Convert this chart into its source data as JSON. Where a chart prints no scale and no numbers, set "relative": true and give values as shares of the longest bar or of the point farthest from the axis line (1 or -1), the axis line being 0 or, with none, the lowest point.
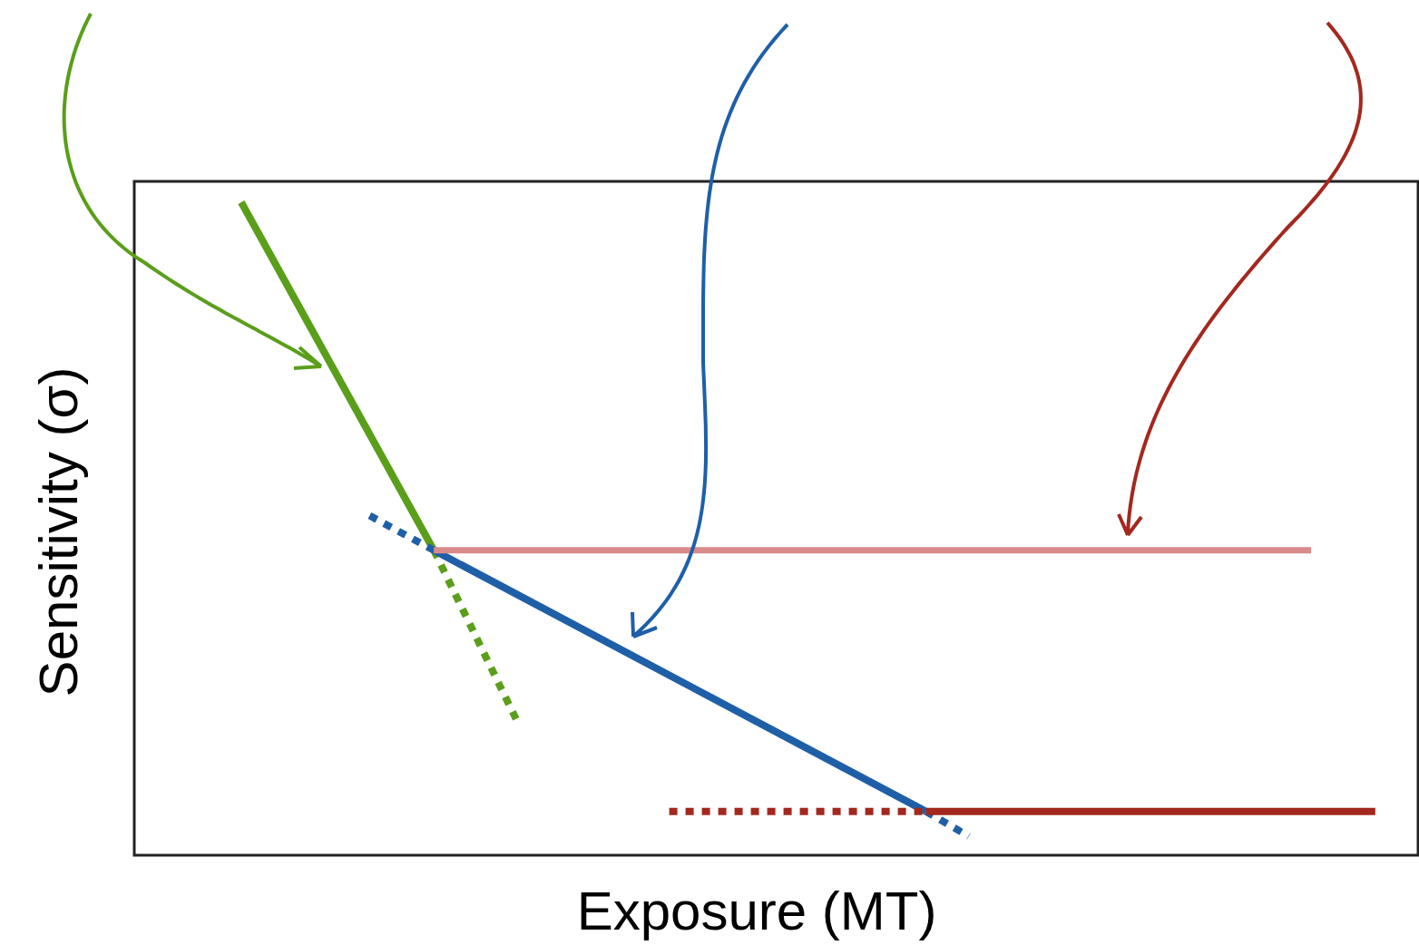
{
  "chart_data": {
    "type": "line",
    "xlabel": "Exposure (MT)",
    "ylabel": "Sensitivity (σ)",
    "relative": true,
    "categories": [
      null,
      null,
      null,
      null,
      null,
      null,
      null,
      null,
      null,
      null,
      null,
      null,
      null,
      null,
      null,
      null,
      null,
      null,
      null,
      null,
      null,
      null,
      null,
      null,
      null,
      null,
      null,
      null,
      null,
      null,
      null,
      null,
      null,
      null,
      null,
      null,
      null,
      null,
      null,
      null,
      null,
      null,
      null,
      null,
      null,
      null,
      null,
      null,
      null,
      null,
      null,
      null,
      null,
      null,
      null,
      null,
      null,
      null,
      null,
      null,
      null
    ],
    "series": [
      {
        "color": "#5a9e1a",
        "line_style": "solid",
        "values": [
          null,
          null,
          null,
          null,
          null,
          1,
          null,
          null,
          null,
          null,
          null,
          null,
          null,
          null,
          0.467,
          null,
          null,
          null,
          null,
          null,
          null,
          null,
          null,
          null,
          null,
          null,
          null,
          null,
          null,
          null,
          null,
          null,
          null,
          null,
          null,
          null,
          null,
          null,
          null,
          null,
          null,
          null,
          null,
          null,
          null,
          null,
          null,
          null,
          null,
          null,
          null,
          null,
          null,
          null,
          null,
          null,
          null,
          null,
          null,
          null,
          null
        ]
      },
      {
        "color": "#5a9e1a",
        "line_style": "dotted",
        "values": [
          null,
          null,
          null,
          null,
          null,
          null,
          null,
          null,
          null,
          null,
          null,
          null,
          null,
          null,
          0.467,
          null,
          null,
          null,
          0.198,
          null,
          null,
          null,
          null,
          null,
          null,
          null,
          null,
          null,
          null,
          null,
          null,
          null,
          null,
          null,
          null,
          null,
          null,
          null,
          null,
          null,
          null,
          null,
          null,
          null,
          null,
          null,
          null,
          null,
          null,
          null,
          null,
          null,
          null,
          null,
          null,
          null,
          null,
          null,
          null,
          null,
          null
        ]
      },
      {
        "color": "#1f5fa8",
        "line_style": "dotted",
        "values": [
          null,
          null,
          null,
          null,
          null,
          null,
          null,
          null,
          null,
          null,
          null,
          0.52,
          null,
          null,
          0.467,
          null,
          null,
          null,
          null,
          null,
          null,
          null,
          null,
          null,
          null,
          null,
          null,
          null,
          null,
          null,
          null,
          null,
          null,
          null,
          null,
          null,
          null,
          null,
          null,
          null,
          null,
          null,
          null,
          null,
          null,
          null,
          null,
          null,
          null,
          null,
          null,
          null,
          null,
          null,
          null,
          null,
          null,
          null,
          null,
          null,
          null
        ]
      },
      {
        "color": "#1f5fa8",
        "line_style": "solid",
        "values": [
          null,
          null,
          null,
          null,
          null,
          null,
          null,
          null,
          null,
          null,
          null,
          null,
          null,
          null,
          0.467,
          null,
          null,
          null,
          null,
          null,
          null,
          null,
          null,
          null,
          null,
          null,
          null,
          null,
          null,
          null,
          null,
          null,
          null,
          null,
          null,
          null,
          null,
          0.067,
          null,
          null,
          null,
          null,
          null,
          null,
          null,
          null,
          null,
          null,
          null,
          null,
          null,
          null,
          null,
          null,
          null,
          null,
          null,
          null,
          null,
          null,
          null
        ]
      },
      {
        "color": "#1f5fa8",
        "line_style": "dotted",
        "values": [
          null,
          null,
          null,
          null,
          null,
          null,
          null,
          null,
          null,
          null,
          null,
          null,
          null,
          null,
          null,
          null,
          null,
          null,
          null,
          null,
          null,
          null,
          null,
          null,
          null,
          null,
          null,
          null,
          null,
          null,
          null,
          null,
          null,
          null,
          null,
          null,
          null,
          0.067,
          null,
          0.029,
          null,
          null,
          null,
          null,
          null,
          null,
          null,
          null,
          null,
          null,
          null,
          null,
          null,
          null,
          null,
          null,
          null,
          null,
          null,
          null,
          null
        ]
      },
      {
        "color": "#d98a8a",
        "line_style": "solid",
        "values": [
          null,
          null,
          null,
          null,
          null,
          null,
          null,
          null,
          null,
          null,
          null,
          null,
          null,
          null,
          0.467,
          null,
          null,
          null,
          null,
          null,
          null,
          null,
          null,
          null,
          null,
          null,
          null,
          null,
          null,
          null,
          null,
          null,
          null,
          null,
          null,
          null,
          null,
          null,
          null,
          null,
          null,
          null,
          null,
          null,
          null,
          null,
          null,
          null,
          null,
          null,
          null,
          null,
          null,
          null,
          null,
          0.467,
          null,
          null,
          null,
          null,
          null
        ]
      },
      {
        "color": "#a3281e",
        "line_style": "dotted",
        "values": [
          null,
          null,
          null,
          null,
          null,
          null,
          null,
          null,
          null,
          null,
          null,
          null,
          null,
          null,
          null,
          null,
          null,
          null,
          null,
          null,
          null,
          null,
          null,
          null,
          null,
          0.067,
          null,
          null,
          null,
          null,
          null,
          null,
          null,
          null,
          null,
          null,
          null,
          0.067,
          null,
          null,
          null,
          null,
          null,
          null,
          null,
          null,
          null,
          null,
          null,
          null,
          null,
          null,
          null,
          null,
          null,
          null,
          null,
          null,
          null,
          null,
          null
        ]
      },
      {
        "color": "#a3281e",
        "line_style": "solid",
        "values": [
          null,
          null,
          null,
          null,
          null,
          null,
          null,
          null,
          null,
          null,
          null,
          null,
          null,
          null,
          null,
          null,
          null,
          null,
          null,
          null,
          null,
          null,
          null,
          null,
          null,
          null,
          null,
          null,
          null,
          null,
          null,
          null,
          null,
          null,
          null,
          null,
          null,
          0.067,
          null,
          null,
          null,
          null,
          null,
          null,
          null,
          null,
          null,
          null,
          null,
          null,
          null,
          null,
          null,
          null,
          null,
          null,
          null,
          null,
          0.067,
          null,
          null
        ]
      }
    ]
  }
}
